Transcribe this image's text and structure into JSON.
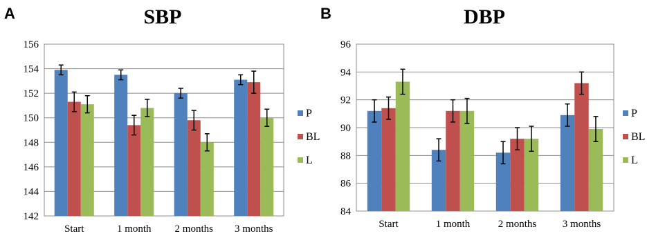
{
  "chart_data": [
    {
      "type": "bar",
      "panel": "A",
      "title": "SBP",
      "categories": [
        "Start",
        "1 month",
        "2 months",
        "3 months"
      ],
      "ylim": [
        142,
        156
      ],
      "yticks": [
        142,
        144,
        146,
        148,
        150,
        152,
        154,
        156
      ],
      "grid": true,
      "legend_position": "right",
      "series": [
        {
          "name": "P",
          "color": "#4f81bd",
          "values": [
            153.9,
            153.5,
            152.0,
            153.1
          ],
          "errors": [
            0.4,
            0.4,
            0.4,
            0.4
          ]
        },
        {
          "name": "BL",
          "color": "#c0504d",
          "values": [
            151.3,
            149.4,
            149.8,
            152.9
          ],
          "errors": [
            0.8,
            0.8,
            0.8,
            0.9
          ]
        },
        {
          "name": "L",
          "color": "#9bbb59",
          "values": [
            151.1,
            150.8,
            148.0,
            150.0
          ],
          "errors": [
            0.7,
            0.7,
            0.7,
            0.7
          ]
        }
      ]
    },
    {
      "type": "bar",
      "panel": "B",
      "title": "DBP",
      "categories": [
        "Start",
        "1 month",
        "2 months",
        "3 months"
      ],
      "ylim": [
        84,
        96
      ],
      "yticks": [
        84,
        86,
        88,
        90,
        92,
        94,
        96
      ],
      "grid": true,
      "legend_position": "right",
      "series": [
        {
          "name": "P",
          "color": "#4f81bd",
          "values": [
            91.2,
            88.4,
            88.2,
            90.9
          ],
          "errors": [
            0.8,
            0.8,
            0.8,
            0.8
          ]
        },
        {
          "name": "BL",
          "color": "#c0504d",
          "values": [
            91.4,
            91.2,
            89.2,
            93.2
          ],
          "errors": [
            0.8,
            0.8,
            0.8,
            0.8
          ]
        },
        {
          "name": "L",
          "color": "#9bbb59",
          "values": [
            93.3,
            91.2,
            89.2,
            89.9
          ],
          "errors": [
            0.9,
            0.9,
            0.9,
            0.9
          ]
        }
      ]
    }
  ]
}
